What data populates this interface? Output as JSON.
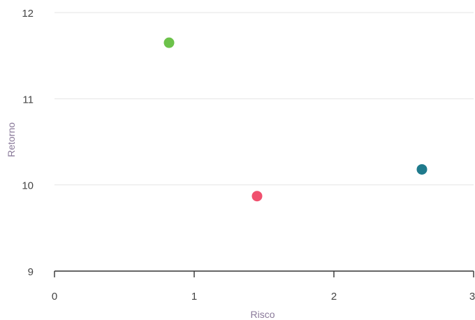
{
  "chart_data": {
    "type": "scatter",
    "title": "",
    "xlabel": "Risco",
    "ylabel": "Retorno",
    "xlim": [
      0,
      3
    ],
    "ylim": [
      9,
      12
    ],
    "x_ticks": [
      0,
      1,
      2,
      3
    ],
    "y_ticks": [
      9,
      10,
      11,
      12
    ],
    "x_tick_labels": [
      "0",
      "1",
      "2",
      "3"
    ],
    "y_tick_labels": [
      "9",
      "10",
      "11",
      "12"
    ],
    "grid": "horizontal",
    "legend": "none",
    "points": [
      {
        "x": 0.82,
        "y": 11.65,
        "color": "#6cc24a"
      },
      {
        "x": 1.45,
        "y": 9.87,
        "color": "#f0506e"
      },
      {
        "x": 2.63,
        "y": 10.18,
        "color": "#1f7a8c"
      }
    ]
  }
}
